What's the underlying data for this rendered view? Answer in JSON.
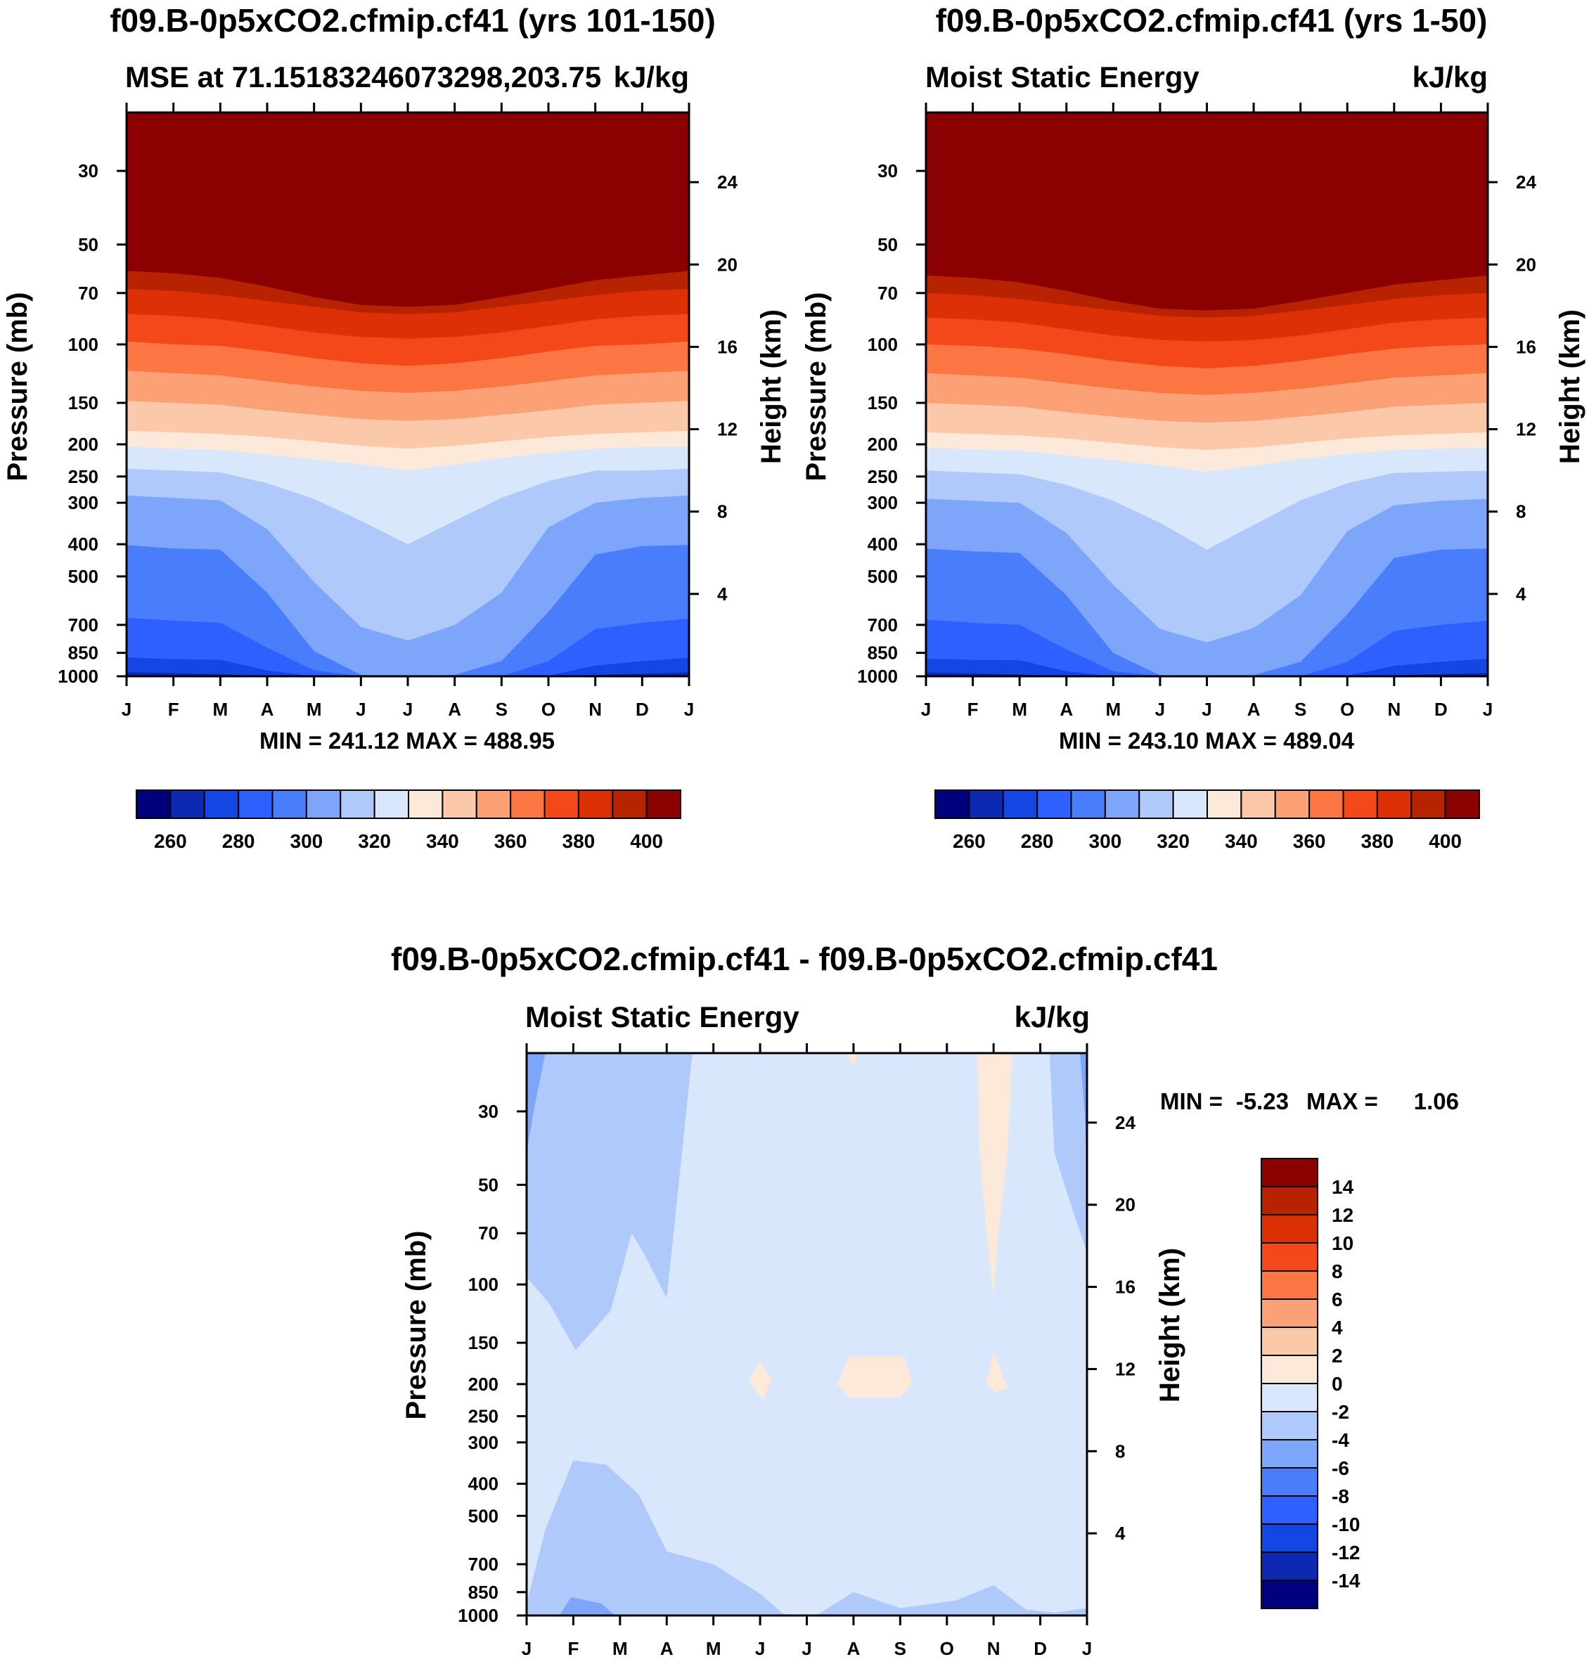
{
  "colors": [
    "#00007f",
    "#0d29b2",
    "#1446e3",
    "#2e5fff",
    "#4a7dfc",
    "#7da6fb",
    "#afc9fa",
    "#d8e7fc",
    "#fde9d9",
    "#fcc8aa",
    "#fca075",
    "#fb7642",
    "#f5481a",
    "#dd3006",
    "#b72201",
    "#8b0000"
  ],
  "panels": [
    {
      "title": "f09.B-0p5xCO2.cfmip.cf41 (yrs 101-150)",
      "subtitle_left": "MSE at 71.15183246073298,203.75",
      "subtitle_right": "kJ/kg",
      "stats": "MIN = 241.12 MAX = 488.95"
    },
    {
      "title": "f09.B-0p5xCO2.cfmip.cf41 (yrs 1-50)",
      "subtitle_left": "Moist Static Energy",
      "subtitle_right": "kJ/kg",
      "stats": "MIN = 243.10 MAX = 489.04"
    },
    {
      "title": "f09.B-0p5xCO2.cfmip.cf41 - f09.B-0p5xCO2.cfmip.cf41",
      "subtitle_left": "Moist Static Energy",
      "subtitle_right": "kJ/kg",
      "stats_min_label": "MIN =",
      "stats_min": "-5.23",
      "stats_max_label": "MAX =",
      "stats_max": "1.06"
    }
  ],
  "chart_data": [
    {
      "type": "heatmap",
      "title": "f09.B-0p5xCO2.cfmip.cf41 (yrs 101-150)",
      "subtitle": "MSE at 71.15183246073298,203.75",
      "units": "kJ/kg",
      "xlabel": "",
      "ylabel": "Pressure (mb)",
      "ylabel_right": "Height (km)",
      "x_ticks": [
        "J",
        "F",
        "M",
        "A",
        "M",
        "J",
        "J",
        "A",
        "S",
        "O",
        "N",
        "D",
        "J"
      ],
      "y_ticks": [
        30,
        50,
        70,
        100,
        150,
        200,
        250,
        300,
        400,
        500,
        700,
        850,
        1000
      ],
      "y_ticks_right": [
        24,
        20,
        16,
        12,
        8,
        4
      ],
      "levels": [
        260,
        270,
        280,
        290,
        300,
        310,
        320,
        330,
        340,
        350,
        360,
        370,
        380,
        390,
        400
      ],
      "colorbar_labels": [
        260,
        280,
        300,
        320,
        340,
        360,
        380,
        400
      ],
      "min": 241.12,
      "max": 488.95,
      "contour_boundaries_mb": {
        "260": [
          1000,
          1000,
          1000,
          1000,
          1000,
          1000,
          1000,
          1000,
          1000,
          1000,
          1000,
          1000,
          1000
        ],
        "270": [
          972,
          978,
          985,
          1000,
          1000,
          1000,
          1000,
          1000,
          1000,
          1000,
          990,
          982,
          975
        ],
        "280": [
          878,
          888,
          892,
          960,
          1000,
          1000,
          1000,
          1000,
          1000,
          995,
          928,
          900,
          880
        ],
        "290": [
          666,
          680,
          690,
          820,
          960,
          1000,
          1000,
          1000,
          1000,
          900,
          720,
          690,
          670
        ],
        "300": [
          402,
          412,
          415,
          560,
          840,
          990,
          1000,
          990,
          900,
          640,
          430,
          405,
          402
        ],
        "310": [
          285,
          290,
          295,
          360,
          520,
          710,
          780,
          700,
          560,
          355,
          300,
          290,
          285
        ],
        "320": [
          237,
          240,
          243,
          262,
          292,
          340,
          400,
          340,
          290,
          258,
          240,
          240,
          237
        ],
        "330": [
          203,
          206,
          208,
          215,
          222,
          230,
          240,
          230,
          220,
          212,
          206,
          204,
          203
        ],
        "340": [
          182,
          184,
          186,
          190,
          196,
          202,
          206,
          202,
          196,
          190,
          186,
          184,
          182
        ],
        "350": [
          148,
          150,
          152,
          158,
          163,
          168,
          170,
          168,
          163,
          158,
          152,
          150,
          148
        ],
        "360": [
          120,
          122,
          124,
          129,
          134,
          138,
          140,
          138,
          134,
          129,
          124,
          122,
          120
        ],
        "370": [
          98,
          100,
          101,
          105,
          110,
          114,
          116,
          114,
          110,
          105,
          101,
          100,
          98
        ],
        "380": [
          81,
          82,
          84,
          88,
          92,
          95,
          96,
          95,
          92,
          88,
          84,
          82,
          81
        ],
        "390": [
          68,
          69,
          71,
          74,
          77,
          80,
          81,
          80,
          77,
          74,
          71,
          69,
          68
        ],
        "400": [
          60,
          61,
          63,
          67,
          72,
          76,
          77,
          76,
          72,
          68,
          64,
          62,
          60
        ]
      }
    },
    {
      "type": "heatmap",
      "title": "f09.B-0p5xCO2.cfmip.cf41 (yrs 1-50)",
      "subtitle": "Moist Static Energy",
      "units": "kJ/kg",
      "xlabel": "",
      "ylabel": "Pressure (mb)",
      "ylabel_right": "Height (km)",
      "x_ticks": [
        "J",
        "F",
        "M",
        "A",
        "M",
        "J",
        "J",
        "A",
        "S",
        "O",
        "N",
        "D",
        "J"
      ],
      "y_ticks": [
        30,
        50,
        70,
        100,
        150,
        200,
        250,
        300,
        400,
        500,
        700,
        850,
        1000
      ],
      "y_ticks_right": [
        24,
        20,
        16,
        12,
        8,
        4
      ],
      "levels": [
        260,
        270,
        280,
        290,
        300,
        310,
        320,
        330,
        340,
        350,
        360,
        370,
        380,
        390,
        400
      ],
      "colorbar_labels": [
        260,
        280,
        300,
        320,
        340,
        360,
        380,
        400
      ],
      "min": 243.1,
      "max": 489.04,
      "contour_boundaries_mb": {
        "260": [
          1000,
          1000,
          1000,
          1000,
          1000,
          1000,
          1000,
          1000,
          1000,
          1000,
          1000,
          1000,
          1000
        ],
        "270": [
          975,
          980,
          988,
          1000,
          1000,
          1000,
          1000,
          1000,
          1000,
          1000,
          992,
          985,
          978
        ],
        "280": [
          885,
          892,
          895,
          965,
          1000,
          1000,
          1000,
          1000,
          1000,
          996,
          930,
          905,
          885
        ],
        "290": [
          675,
          690,
          700,
          830,
          965,
          1000,
          1000,
          1000,
          1000,
          905,
          730,
          700,
          680
        ],
        "300": [
          412,
          420,
          425,
          570,
          850,
          992,
          1000,
          992,
          905,
          650,
          440,
          415,
          412
        ],
        "310": [
          292,
          296,
          300,
          370,
          530,
          720,
          790,
          715,
          570,
          365,
          305,
          296,
          292
        ],
        "320": [
          240,
          243,
          246,
          265,
          296,
          345,
          415,
          350,
          295,
          262,
          244,
          242,
          240
        ],
        "330": [
          205,
          207,
          209,
          216,
          223,
          232,
          242,
          232,
          222,
          214,
          208,
          206,
          205
        ],
        "340": [
          184,
          186,
          188,
          192,
          198,
          204,
          208,
          204,
          198,
          192,
          188,
          186,
          184
        ],
        "350": [
          150,
          152,
          154,
          160,
          165,
          170,
          172,
          170,
          165,
          160,
          154,
          152,
          150
        ],
        "360": [
          122,
          124,
          126,
          131,
          136,
          140,
          142,
          140,
          136,
          131,
          126,
          124,
          122
        ],
        "370": [
          100,
          101,
          103,
          107,
          112,
          116,
          118,
          116,
          112,
          107,
          103,
          101,
          100
        ],
        "380": [
          83,
          84,
          86,
          90,
          94,
          97,
          98,
          97,
          94,
          90,
          86,
          84,
          83
        ],
        "390": [
          70,
          71,
          73,
          76,
          79,
          82,
          83,
          82,
          79,
          76,
          73,
          71,
          70
        ],
        "400": [
          62,
          63,
          65,
          69,
          74,
          78,
          79,
          78,
          74,
          70,
          66,
          64,
          62
        ]
      }
    },
    {
      "type": "heatmap",
      "title": "f09.B-0p5xCO2.cfmip.cf41 - f09.B-0p5xCO2.cfmip.cf41",
      "subtitle": "Moist Static Energy",
      "units": "kJ/kg",
      "xlabel": "",
      "ylabel": "Pressure (mb)",
      "ylabel_right": "Height (km)",
      "x_ticks": [
        "J",
        "F",
        "M",
        "A",
        "M",
        "J",
        "J",
        "A",
        "S",
        "O",
        "N",
        "D",
        "J"
      ],
      "y_ticks": [
        30,
        50,
        70,
        100,
        150,
        200,
        250,
        300,
        400,
        500,
        700,
        850,
        1000
      ],
      "y_ticks_right": [
        24,
        20,
        16,
        12,
        8,
        4
      ],
      "levels": [
        -14,
        -12,
        -10,
        -8,
        -6,
        -4,
        -2,
        0,
        2,
        4,
        6,
        8,
        10,
        12,
        14
      ],
      "colorbar_labels": [
        -14,
        -12,
        -10,
        -8,
        -6,
        -4,
        -2,
        0,
        2,
        4,
        6,
        8,
        10,
        12,
        14
      ],
      "min": -5.23,
      "max": 1.06,
      "regions": [
        {
          "range": "-2 to 0",
          "description": "background field"
        },
        {
          "range": "-4 to -2",
          "description": "upper levels Jan-Apr (down to ~150 mb)"
        },
        {
          "range": "-4 to -2",
          "description": "upper levels Dec-Jan (above ~80 mb)"
        },
        {
          "range": "-4 to -2",
          "description": "lower levels Jan-Apr (~350-1000 mb) and near surface Apr-Dec"
        },
        {
          "range": "-6 to -4",
          "description": "near surface Feb-Mar and upper left/right edges"
        },
        {
          "range": "0 to 2",
          "description": "Nov above ~100 mb, plus small patches near 200 mb in Jun, Aug-Sep, Nov"
        }
      ]
    }
  ]
}
